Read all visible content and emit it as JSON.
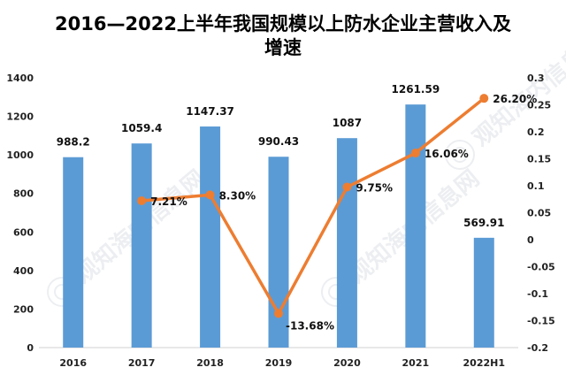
{
  "chart_data": {
    "type": "bar",
    "title": "2016—2022上半年我国规模以上防水企业主营收入及增速",
    "categories": [
      "2016",
      "2017",
      "2018",
      "2019",
      "2020",
      "2021",
      "2022H1"
    ],
    "series": [
      {
        "axis": "left",
        "type": "bar",
        "values": [
          988.2,
          1059.4,
          1147.37,
          990.43,
          1087,
          1261.59,
          569.91
        ],
        "value_labels": [
          "988.2",
          "1059.4",
          "1147.37",
          "990.43",
          "1087",
          "1261.59",
          "569.91"
        ],
        "color": "#5B9BD5"
      },
      {
        "axis": "right",
        "type": "line",
        "values": [
          null,
          0.0721,
          0.083,
          -0.1368,
          0.0975,
          0.1606,
          0.262
        ],
        "value_labels": [
          null,
          "7.21%",
          "8.30%",
          "-13.68%",
          "9.75%",
          "16.06%",
          "26.20%"
        ],
        "color": "#ED7D31"
      }
    ],
    "y_left": {
      "lim": [
        0,
        1400
      ],
      "ticks": [
        0,
        200,
        400,
        600,
        800,
        1000,
        1200,
        1400
      ],
      "tick_labels": [
        "0",
        "200",
        "400",
        "600",
        "800",
        "1000",
        "1200",
        "1400"
      ]
    },
    "y_right": {
      "lim": [
        -0.2,
        0.3
      ],
      "ticks": [
        -0.2,
        -0.15,
        -0.1,
        -0.05,
        0,
        0.05,
        0.1,
        0.15,
        0.2,
        0.25,
        0.3
      ],
      "tick_labels": [
        "-0.2",
        "-0.15",
        "-0.1",
        "-0.05",
        "0",
        "0.05",
        "0.1",
        "0.15",
        "0.2",
        "0.25",
        "0.3"
      ]
    },
    "watermark": "观知海内信息网",
    "grid": false
  }
}
